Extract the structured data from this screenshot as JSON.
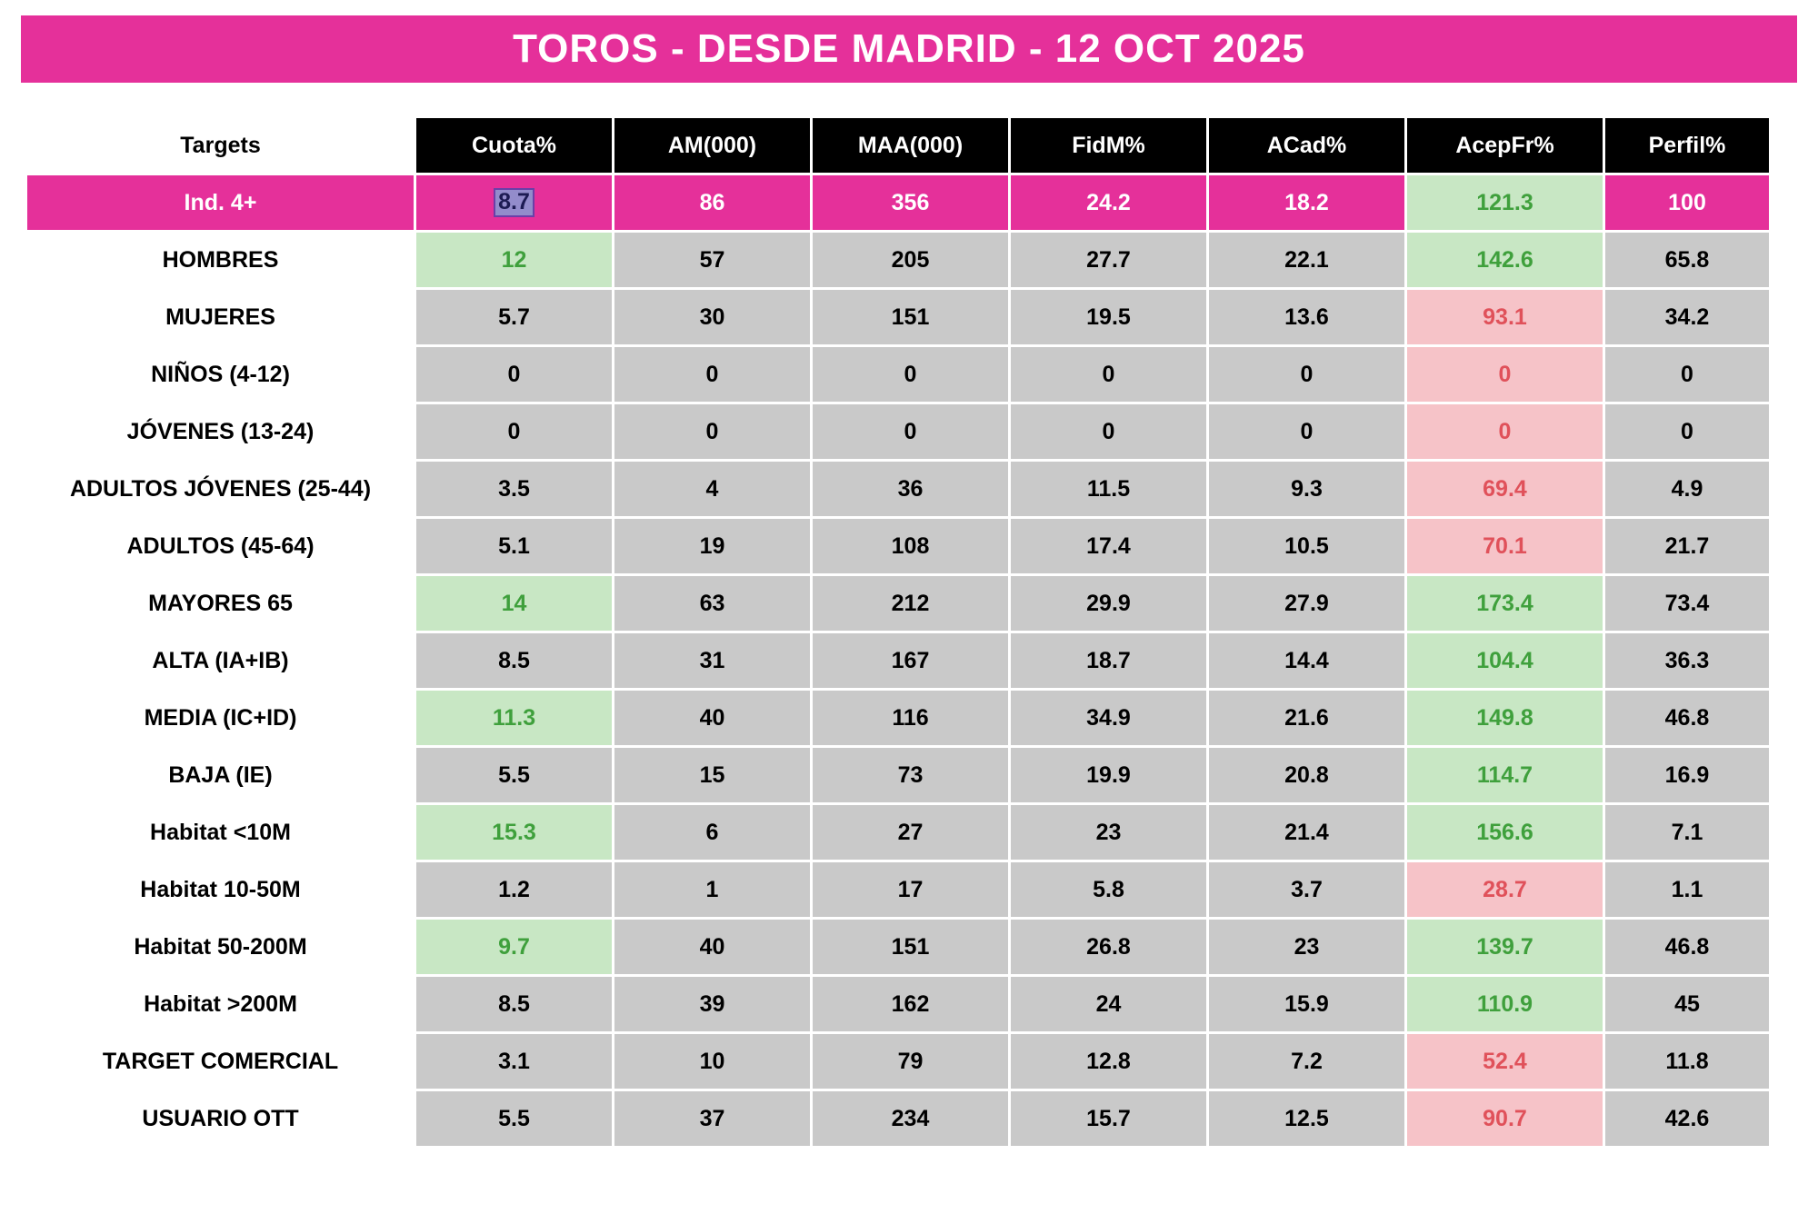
{
  "title": "TOROS - DESDE MADRID - 12 OCT 2025",
  "colors": {
    "banner_pink": "#e5309a",
    "cell_gray": "#c9c9c9",
    "positive_bg": "#c8e7c4",
    "positive_text": "#3fa03c",
    "negative_bg": "#f6c3c8",
    "negative_text": "#e0515a",
    "header_black": "#000000"
  },
  "chart_data": {
    "type": "table",
    "title": "TOROS - DESDE MADRID - 12 OCT 2025",
    "columns": [
      "Targets",
      "Cuota%",
      "AM(000)",
      "MAA(000)",
      "FidM%",
      "ACad%",
      "AcepFr%",
      "Perfil%"
    ],
    "rows": [
      {
        "label": "Ind. 4+",
        "values": [
          "8.7",
          "86",
          "356",
          "24.2",
          "18.2",
          "121.3",
          "100"
        ],
        "styles": [
          "selected",
          "",
          "",
          "",
          "",
          "green",
          ""
        ],
        "row_style": "pink"
      },
      {
        "label": "HOMBRES",
        "values": [
          "12",
          "57",
          "205",
          "27.7",
          "22.1",
          "142.6",
          "65.8"
        ],
        "styles": [
          "green",
          "",
          "",
          "",
          "",
          "green",
          ""
        ],
        "row_style": ""
      },
      {
        "label": "MUJERES",
        "values": [
          "5.7",
          "30",
          "151",
          "19.5",
          "13.6",
          "93.1",
          "34.2"
        ],
        "styles": [
          "",
          "",
          "",
          "",
          "",
          "red",
          ""
        ],
        "row_style": ""
      },
      {
        "label": "NIÑOS (4-12)",
        "values": [
          "0",
          "0",
          "0",
          "0",
          "0",
          "0",
          "0"
        ],
        "styles": [
          "",
          "",
          "",
          "",
          "",
          "red",
          ""
        ],
        "row_style": ""
      },
      {
        "label": "JÓVENES (13-24)",
        "values": [
          "0",
          "0",
          "0",
          "0",
          "0",
          "0",
          "0"
        ],
        "styles": [
          "",
          "",
          "",
          "",
          "",
          "red",
          ""
        ],
        "row_style": ""
      },
      {
        "label": "ADULTOS JÓVENES (25-44)",
        "values": [
          "3.5",
          "4",
          "36",
          "11.5",
          "9.3",
          "69.4",
          "4.9"
        ],
        "styles": [
          "",
          "",
          "",
          "",
          "",
          "red",
          ""
        ],
        "row_style": ""
      },
      {
        "label": "ADULTOS (45-64)",
        "values": [
          "5.1",
          "19",
          "108",
          "17.4",
          "10.5",
          "70.1",
          "21.7"
        ],
        "styles": [
          "",
          "",
          "",
          "",
          "",
          "red",
          ""
        ],
        "row_style": ""
      },
      {
        "label": "MAYORES 65",
        "values": [
          "14",
          "63",
          "212",
          "29.9",
          "27.9",
          "173.4",
          "73.4"
        ],
        "styles": [
          "green",
          "",
          "",
          "",
          "",
          "green",
          ""
        ],
        "row_style": ""
      },
      {
        "label": "ALTA (IA+IB)",
        "values": [
          "8.5",
          "31",
          "167",
          "18.7",
          "14.4",
          "104.4",
          "36.3"
        ],
        "styles": [
          "",
          "",
          "",
          "",
          "",
          "green",
          ""
        ],
        "row_style": ""
      },
      {
        "label": "MEDIA (IC+ID)",
        "values": [
          "11.3",
          "40",
          "116",
          "34.9",
          "21.6",
          "149.8",
          "46.8"
        ],
        "styles": [
          "green",
          "",
          "",
          "",
          "",
          "green",
          ""
        ],
        "row_style": ""
      },
      {
        "label": "BAJA (IE)",
        "values": [
          "5.5",
          "15",
          "73",
          "19.9",
          "20.8",
          "114.7",
          "16.9"
        ],
        "styles": [
          "",
          "",
          "",
          "",
          "",
          "green",
          ""
        ],
        "row_style": ""
      },
      {
        "label": "Habitat <10M",
        "values": [
          "15.3",
          "6",
          "27",
          "23",
          "21.4",
          "156.6",
          "7.1"
        ],
        "styles": [
          "green",
          "",
          "",
          "",
          "",
          "green",
          ""
        ],
        "row_style": ""
      },
      {
        "label": "Habitat 10-50M",
        "values": [
          "1.2",
          "1",
          "17",
          "5.8",
          "3.7",
          "28.7",
          "1.1"
        ],
        "styles": [
          "",
          "",
          "",
          "",
          "",
          "red",
          ""
        ],
        "row_style": ""
      },
      {
        "label": "Habitat 50-200M",
        "values": [
          "9.7",
          "40",
          "151",
          "26.8",
          "23",
          "139.7",
          "46.8"
        ],
        "styles": [
          "green",
          "",
          "",
          "",
          "",
          "green",
          ""
        ],
        "row_style": ""
      },
      {
        "label": "Habitat >200M",
        "values": [
          "8.5",
          "39",
          "162",
          "24",
          "15.9",
          "110.9",
          "45"
        ],
        "styles": [
          "",
          "",
          "",
          "",
          "",
          "green",
          ""
        ],
        "row_style": ""
      },
      {
        "label": "TARGET COMERCIAL",
        "values": [
          "3.1",
          "10",
          "79",
          "12.8",
          "7.2",
          "52.4",
          "11.8"
        ],
        "styles": [
          "",
          "",
          "",
          "",
          "",
          "red",
          ""
        ],
        "row_style": ""
      },
      {
        "label": "USUARIO OTT",
        "values": [
          "5.5",
          "37",
          "234",
          "15.7",
          "12.5",
          "90.7",
          "42.6"
        ],
        "styles": [
          "",
          "",
          "",
          "",
          "",
          "red",
          ""
        ],
        "row_style": ""
      }
    ]
  }
}
